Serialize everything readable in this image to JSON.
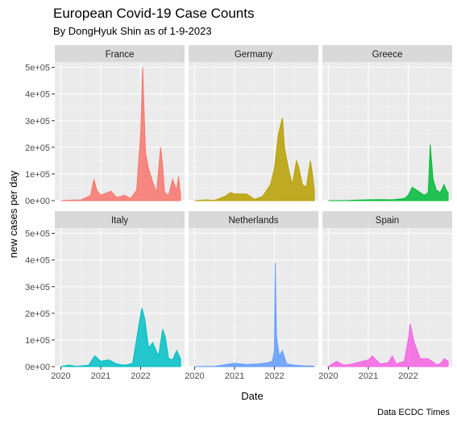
{
  "chart_data": {
    "type": "area",
    "title": "European Covid-19 Case Counts",
    "subtitle": "By DongHyuk Shin as of 1-9-2023",
    "xlabel": "Date",
    "ylabel": "new cases per day",
    "caption": "Data ECDC Times",
    "x_ticks": [
      "2020",
      "2021",
      "2022",
      "2020",
      "2021",
      "2022",
      "2020",
      "2021",
      "2022"
    ],
    "y_ticks": [
      "0e+00",
      "1e+05",
      "2e+05",
      "3e+05",
      "4e+05",
      "5e+05"
    ],
    "ylim": [
      0,
      520000
    ],
    "xlim": [
      2019.85,
      2023.1
    ],
    "grid": true,
    "legend": "none",
    "panels": [
      {
        "name": "France",
        "color": "#F8766D",
        "series": {
          "x": [
            2020.0,
            2020.3,
            2020.5,
            2020.75,
            2020.83,
            2020.9,
            2021.0,
            2021.25,
            2021.4,
            2021.6,
            2021.75,
            2021.9,
            2022.0,
            2022.05,
            2022.12,
            2022.2,
            2022.3,
            2022.4,
            2022.5,
            2022.55,
            2022.6,
            2022.7,
            2022.8,
            2022.9,
            2022.95,
            2023.0
          ],
          "y": [
            0,
            2000,
            2000,
            20000,
            80000,
            40000,
            20000,
            35000,
            12000,
            20000,
            8000,
            40000,
            250000,
            500000,
            180000,
            120000,
            70000,
            30000,
            200000,
            130000,
            30000,
            20000,
            80000,
            40000,
            90000,
            20000
          ]
        }
      },
      {
        "name": "Germany",
        "color": "#B79F00",
        "series": {
          "x": [
            2020.0,
            2020.3,
            2020.5,
            2020.75,
            2020.9,
            2021.0,
            2021.3,
            2021.5,
            2021.7,
            2021.9,
            2022.0,
            2022.1,
            2022.2,
            2022.25,
            2022.35,
            2022.45,
            2022.55,
            2022.6,
            2022.7,
            2022.8,
            2022.9,
            2022.95,
            2023.0
          ],
          "y": [
            0,
            3000,
            1000,
            15000,
            30000,
            25000,
            25000,
            5000,
            15000,
            60000,
            120000,
            250000,
            310000,
            200000,
            120000,
            60000,
            150000,
            130000,
            60000,
            50000,
            150000,
            100000,
            40000
          ]
        }
      },
      {
        "name": "Greece",
        "color": "#00BA38",
        "series": {
          "x": [
            2020.0,
            2020.5,
            2020.8,
            2021.0,
            2021.3,
            2021.6,
            2021.9,
            2022.0,
            2022.1,
            2022.2,
            2022.3,
            2022.4,
            2022.5,
            2022.55,
            2022.62,
            2022.7,
            2022.8,
            2022.9,
            2022.95,
            2023.0
          ],
          "y": [
            0,
            500,
            2000,
            3000,
            4000,
            3000,
            8000,
            20000,
            50000,
            40000,
            30000,
            20000,
            30000,
            210000,
            80000,
            40000,
            30000,
            60000,
            40000,
            30000
          ]
        }
      },
      {
        "name": "Italy",
        "color": "#00BFC4",
        "series": {
          "x": [
            2020.0,
            2020.2,
            2020.4,
            2020.7,
            2020.85,
            2021.0,
            2021.2,
            2021.4,
            2021.6,
            2021.8,
            2021.95,
            2022.03,
            2022.1,
            2022.2,
            2022.3,
            2022.45,
            2022.55,
            2022.62,
            2022.7,
            2022.8,
            2022.9,
            2023.0
          ],
          "y": [
            0,
            5000,
            1000,
            5000,
            40000,
            20000,
            25000,
            10000,
            5000,
            12000,
            150000,
            220000,
            180000,
            70000,
            90000,
            40000,
            140000,
            110000,
            30000,
            25000,
            60000,
            30000
          ]
        }
      },
      {
        "name": "Netherlands",
        "color": "#619CFF",
        "series": {
          "x": [
            2020.0,
            2020.3,
            2020.5,
            2020.8,
            2021.0,
            2021.3,
            2021.6,
            2021.85,
            2021.95,
            2022.0,
            2022.02,
            2022.05,
            2022.08,
            2022.12,
            2022.2,
            2022.3,
            2022.5,
            2022.7,
            2022.9,
            2023.0
          ],
          "y": [
            0,
            1000,
            500,
            8000,
            12000,
            8000,
            10000,
            15000,
            20000,
            60000,
            390000,
            120000,
            80000,
            40000,
            60000,
            10000,
            5000,
            3000,
            2000,
            1000
          ]
        }
      },
      {
        "name": "Spain",
        "color": "#F564E3",
        "series": {
          "x": [
            2020.0,
            2020.2,
            2020.4,
            2020.6,
            2020.85,
            2021.0,
            2021.1,
            2021.3,
            2021.5,
            2021.6,
            2021.7,
            2021.9,
            2022.0,
            2022.05,
            2022.15,
            2022.3,
            2022.5,
            2022.7,
            2022.8,
            2022.9,
            2023.0
          ],
          "y": [
            0,
            20000,
            5000,
            10000,
            20000,
            25000,
            40000,
            10000,
            15000,
            40000,
            10000,
            20000,
            100000,
            160000,
            90000,
            30000,
            30000,
            8000,
            10000,
            30000,
            20000
          ]
        }
      }
    ]
  }
}
